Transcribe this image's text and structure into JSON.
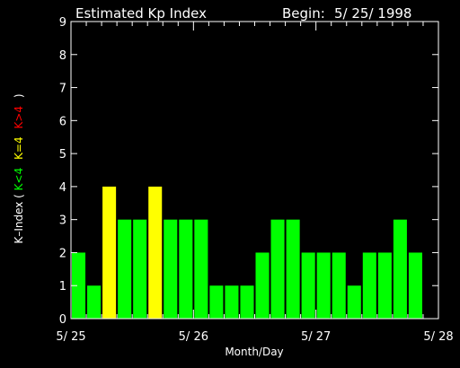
{
  "header": {
    "title": "Estimated Kp Index",
    "begin_label": "Begin:",
    "begin_date": "5/ 25/ 1998"
  },
  "ylabel_parts": {
    "prefix": "K–Index (",
    "green": "K<4",
    "yellow": "K=4",
    "red": "K>4",
    "suffix": ")"
  },
  "colors": {
    "background": "#000000",
    "axis": "#ffffff",
    "below4": "#00ff00",
    "equal4": "#ffff00",
    "above4": "#ff0000"
  },
  "chart_data": {
    "type": "bar",
    "xlabel": "Month/Day",
    "ylim": [
      0,
      9
    ],
    "yticks": [
      "0",
      "1",
      "2",
      "3",
      "4",
      "5",
      "6",
      "7",
      "8",
      "9"
    ],
    "xlim_days": [
      0,
      3
    ],
    "xticks": [
      {
        "day": 0,
        "label": "5/ 25"
      },
      {
        "day": 1,
        "label": "5/ 26"
      },
      {
        "day": 2,
        "label": "5/ 27"
      },
      {
        "day": 3,
        "label": "5/ 28"
      }
    ],
    "interval_hours": 3,
    "values": [
      2,
      1,
      4,
      3,
      3,
      4,
      3,
      3,
      3,
      1,
      1,
      1,
      2,
      3,
      3,
      2,
      2,
      2,
      1,
      2,
      2,
      3,
      2,
      null
    ],
    "grid": false
  }
}
